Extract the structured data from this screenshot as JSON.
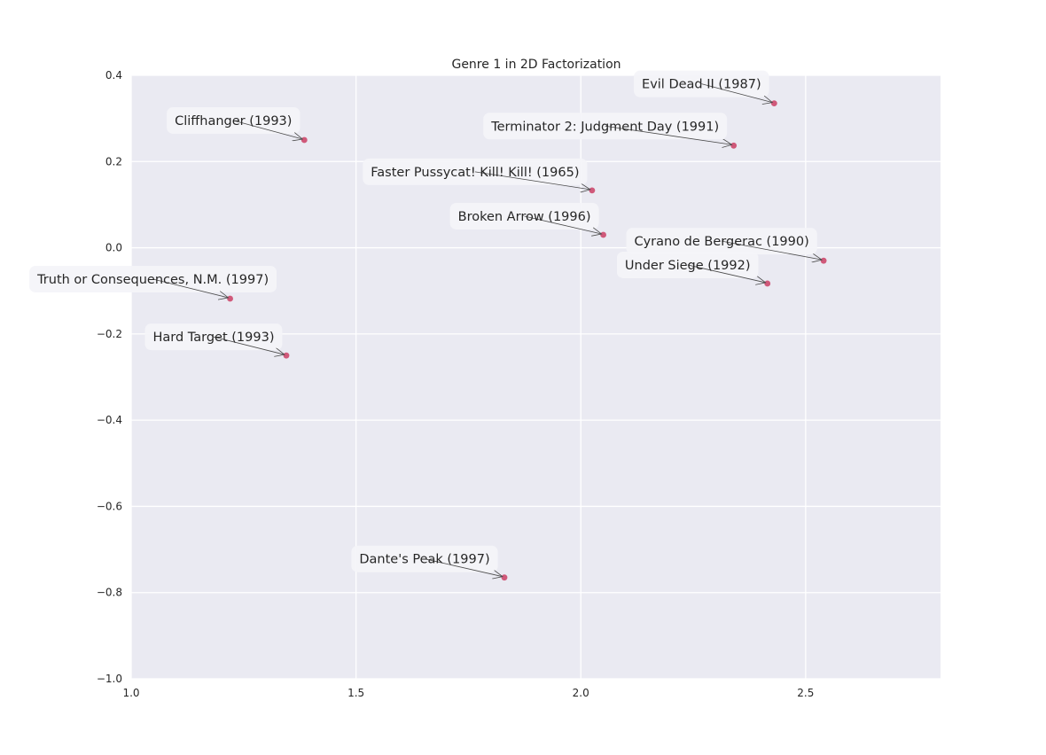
{
  "chart_data": {
    "type": "scatter",
    "title": "Genre 1 in 2D Factorization",
    "xlabel": "",
    "ylabel": "",
    "xlim": [
      1.0,
      2.8
    ],
    "ylim": [
      -1.0,
      0.4
    ],
    "xticks": [
      1.0,
      1.5,
      2.0,
      2.5
    ],
    "xtick_labels": [
      "1.0",
      "1.5",
      "2.0",
      "2.5"
    ],
    "yticks": [
      0.4,
      0.2,
      0.0,
      -0.2,
      -0.4,
      -0.6,
      -0.8,
      -1.0
    ],
    "ytick_labels": [
      "0.4",
      "0.2",
      "0.0",
      "−0.2",
      "−0.4",
      "−0.6",
      "−0.8",
      "−1.0"
    ],
    "grid": true,
    "point_color": "#d0597a",
    "background_color": "#eaeaf2",
    "points": [
      {
        "x": 2.43,
        "y": 0.335,
        "label": "Evil Dead II (1987)"
      },
      {
        "x": 1.385,
        "y": 0.25,
        "label": "Cliffhanger (1993)"
      },
      {
        "x": 2.34,
        "y": 0.237,
        "label": "Terminator 2: Judgment Day (1991)"
      },
      {
        "x": 2.025,
        "y": 0.133,
        "label": "Faster Pussycat! Kill! Kill! (1965)"
      },
      {
        "x": 2.05,
        "y": 0.03,
        "label": "Broken Arrow (1996)"
      },
      {
        "x": 2.54,
        "y": -0.03,
        "label": "Cyrano de Bergerac (1990)"
      },
      {
        "x": 2.415,
        "y": -0.083,
        "label": "Under Siege (1992)"
      },
      {
        "x": 1.22,
        "y": -0.118,
        "label": "Truth or Consequences, N.M. (1997)"
      },
      {
        "x": 1.345,
        "y": -0.25,
        "label": "Hard Target (1993)"
      },
      {
        "x": 1.83,
        "y": -0.765,
        "label": "Dante's Peak (1997)"
      }
    ]
  }
}
